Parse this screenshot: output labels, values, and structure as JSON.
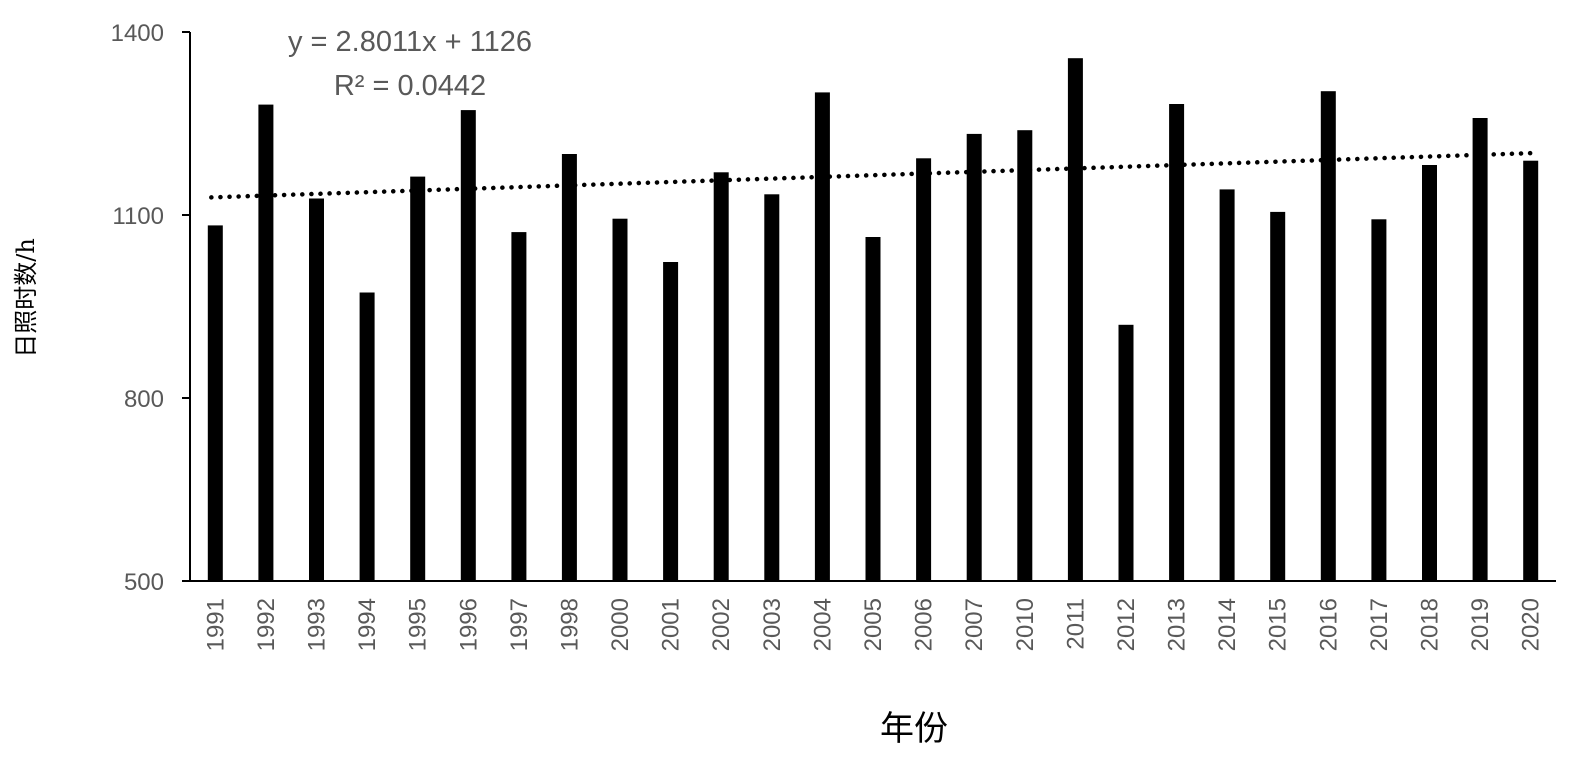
{
  "chart_data": {
    "type": "bar",
    "title": "",
    "xlabel": "年份",
    "ylabel": "日照时数/h",
    "ylim": [
      500,
      1400
    ],
    "yticks": [
      "500",
      "800",
      "1100",
      "1400"
    ],
    "categories": [
      "1991",
      "1992",
      "1993",
      "1994",
      "1995",
      "1996",
      "1997",
      "1998",
      "2000",
      "2001",
      "2002",
      "2003",
      "2004",
      "2005",
      "2006",
      "2007",
      "2010",
      "2011",
      "2012",
      "2013",
      "2014",
      "2015",
      "2016",
      "2017",
      "2018",
      "2019",
      "2020"
    ],
    "values": [
      1083,
      1281,
      1127,
      973,
      1163,
      1272,
      1072,
      1200,
      1094,
      1023,
      1170,
      1134,
      1301,
      1064,
      1193,
      1233,
      1239,
      1357,
      920,
      1282,
      1142,
      1105,
      1303,
      1093,
      1182,
      1259,
      1189
    ],
    "bar_color": "#000000",
    "grid": false,
    "legend": "none",
    "trendline": {
      "type": "linear",
      "style": "dotted",
      "slope": 2.8011,
      "intercept": 1126,
      "equation": "y = 2.8011x + 1126",
      "r2_label": "R² = 0.0442"
    }
  }
}
